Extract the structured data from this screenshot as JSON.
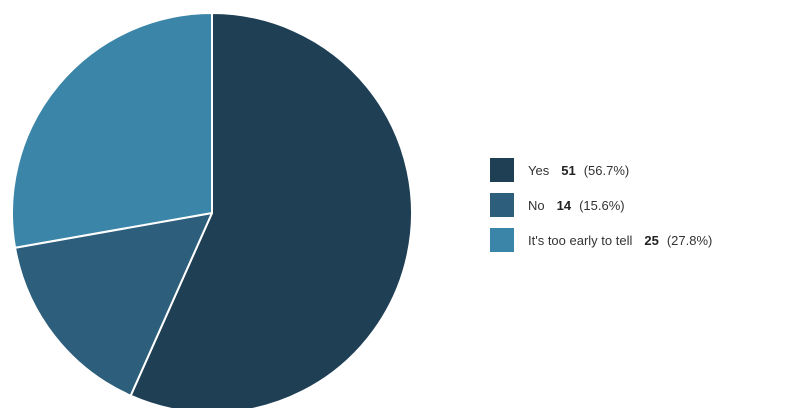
{
  "chart_data": {
    "type": "pie",
    "title": "",
    "slices": [
      {
        "label": "Yes",
        "value": 51,
        "percent": "(56.7%)",
        "color": "#1f3f55"
      },
      {
        "label": "No",
        "value": 14,
        "percent": "(15.6%)",
        "color": "#2d5f7c"
      },
      {
        "label": "It's too early to tell",
        "value": 25,
        "percent": "(27.8%)",
        "color": "#3a85a8"
      }
    ],
    "legend_position": "right",
    "start_angle_deg": 90,
    "direction": "clockwise",
    "slice_border_color": "#ffffff"
  }
}
